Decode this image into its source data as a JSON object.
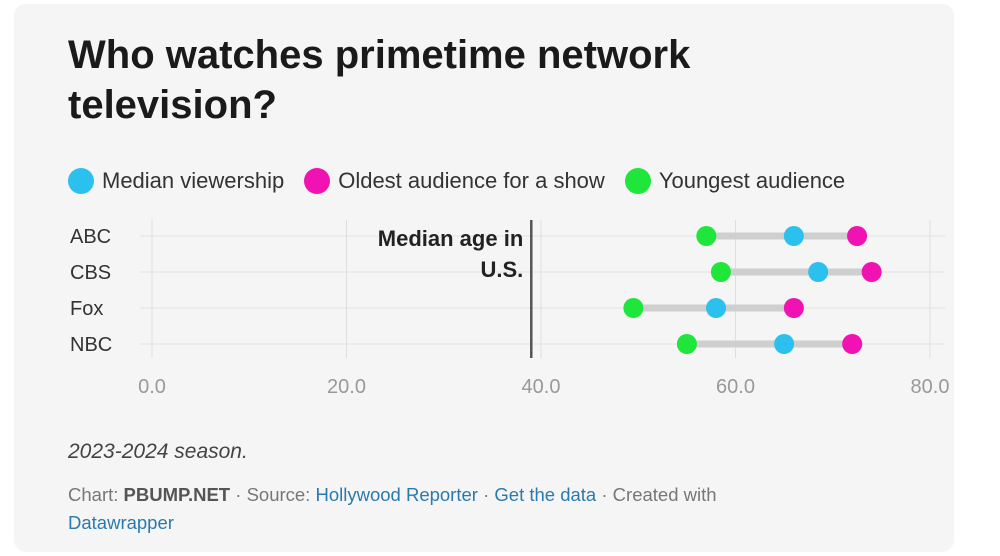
{
  "title": "Who watches primetime network television?",
  "legend": [
    {
      "label": "Median viewership",
      "color": "#2bc0ee"
    },
    {
      "label": "Oldest audience for a show",
      "color": "#f012b3"
    },
    {
      "label": "Youngest audience",
      "color": "#1ee63a"
    }
  ],
  "chart_data": {
    "type": "range-dot",
    "categories": [
      "ABC",
      "CBS",
      "Fox",
      "NBC"
    ],
    "series": [
      {
        "name": "Youngest audience",
        "color": "#1ee63a",
        "values": [
          57.0,
          58.5,
          49.5,
          55.0
        ]
      },
      {
        "name": "Median viewership",
        "color": "#2bc0ee",
        "values": [
          66.0,
          68.5,
          58.0,
          65.0
        ]
      },
      {
        "name": "Oldest audience for a show",
        "color": "#f012b3",
        "values": [
          72.5,
          74.0,
          66.0,
          72.0
        ]
      }
    ],
    "reference_line": {
      "value": 39.0,
      "label_lines": [
        "Median age in",
        "U.S."
      ]
    },
    "xlim": [
      0,
      80
    ],
    "ticks": [
      0,
      20,
      40,
      60,
      80
    ],
    "tick_labels": [
      "0.0",
      "20.0",
      "40.0",
      "60.0",
      "80.0"
    ],
    "grid": true
  },
  "footnote": "2023-2024 season.",
  "credit": {
    "prefix": "Chart:",
    "brand": "PBUMP.NET",
    "source_prefix": "Source:",
    "source": "Hollywood Reporter",
    "get_data": "Get the data",
    "created_prefix": "Created with",
    "tool": "Datawrapper"
  }
}
